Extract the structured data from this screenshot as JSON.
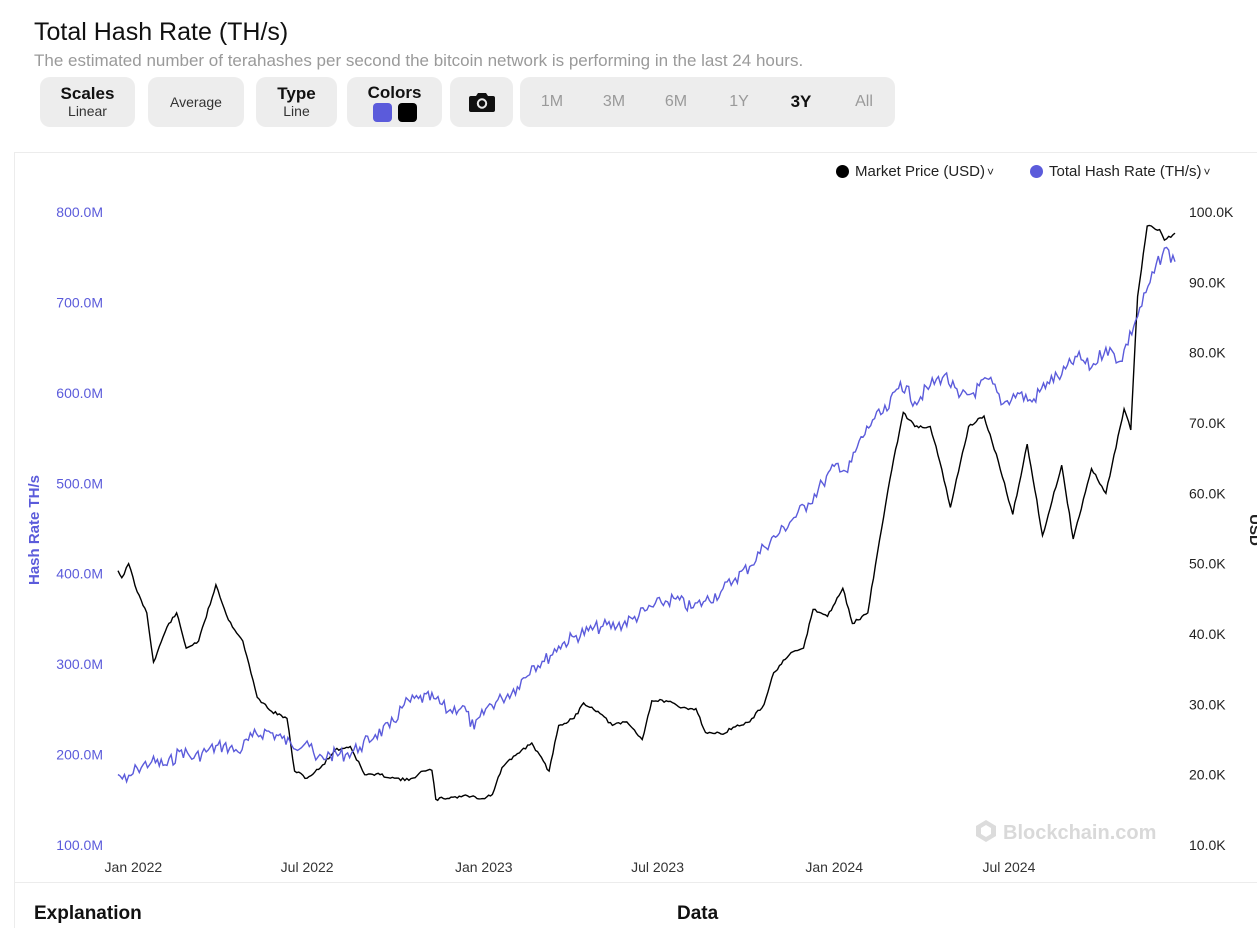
{
  "header": {
    "title": "Total Hash Rate (TH/s)",
    "subtitle": "The estimated number of terahashes per second the bitcoin network is performing in the last 24 hours."
  },
  "controls": {
    "scales_label": "Scales",
    "scales_value": "Linear",
    "average_label": "Average",
    "type_label": "Type",
    "type_value": "Line",
    "colors_label": "Colors",
    "color_1": "#5b5bdb",
    "color_2": "#000000",
    "camera_icon": "camera-icon",
    "ranges": [
      "1M",
      "3M",
      "6M",
      "1Y",
      "3Y",
      "All"
    ],
    "active_range": "3Y"
  },
  "legend": {
    "price_label": "Market Price (USD)",
    "hash_label": "Total Hash Rate (TH/s)"
  },
  "watermark": "Blockchain.com",
  "footer": {
    "explanation": "Explanation",
    "data": "Data"
  },
  "chart_data": {
    "type": "line",
    "x_ticks": [
      "Jan 2022",
      "Jul 2022",
      "Jan 2023",
      "Jul 2023",
      "Jan 2024",
      "Jul 2024"
    ],
    "y_left": {
      "label": "Hash Rate TH/s",
      "range": [
        100,
        800
      ],
      "ticks": [
        "100.0M",
        "200.0M",
        "300.0M",
        "400.0M",
        "500.0M",
        "600.0M",
        "700.0M",
        "800.0M"
      ],
      "color": "#5b5bdb"
    },
    "y_right": {
      "label": "USD",
      "range": [
        10,
        100
      ],
      "ticks": [
        "10.0K",
        "20.0K",
        "30.0K",
        "40.0K",
        "50.0K",
        "60.0K",
        "70.0K",
        "80.0K",
        "90.0K",
        "100.0K"
      ],
      "color": "#222222"
    },
    "x_domain": [
      "2021-12-16",
      "2024-12-21"
    ],
    "series": [
      {
        "name": "Total Hash Rate (TH/s)",
        "axis": "left",
        "color": "#5b5bdb",
        "unit": "M TH/s",
        "points": [
          [
            "2021-12-16",
            178
          ],
          [
            "2021-12-25",
            170
          ],
          [
            "2022-01-05",
            185
          ],
          [
            "2022-01-20",
            192
          ],
          [
            "2022-02-05",
            188
          ],
          [
            "2022-02-20",
            205
          ],
          [
            "2022-03-05",
            196
          ],
          [
            "2022-03-20",
            205
          ],
          [
            "2022-04-05",
            210
          ],
          [
            "2022-04-20",
            203
          ],
          [
            "2022-05-05",
            220
          ],
          [
            "2022-05-20",
            226
          ],
          [
            "2022-06-05",
            218
          ],
          [
            "2022-06-15",
            210
          ],
          [
            "2022-07-01",
            215
          ],
          [
            "2022-07-10",
            194
          ],
          [
            "2022-07-25",
            200
          ],
          [
            "2022-08-10",
            200
          ],
          [
            "2022-08-25",
            208
          ],
          [
            "2022-09-10",
            222
          ],
          [
            "2022-09-25",
            230
          ],
          [
            "2022-10-10",
            255
          ],
          [
            "2022-10-25",
            262
          ],
          [
            "2022-11-10",
            262
          ],
          [
            "2022-11-25",
            248
          ],
          [
            "2022-12-10",
            254
          ],
          [
            "2022-12-22",
            228
          ],
          [
            "2023-01-05",
            253
          ],
          [
            "2023-01-20",
            262
          ],
          [
            "2023-02-05",
            275
          ],
          [
            "2023-02-20",
            298
          ],
          [
            "2023-03-05",
            303
          ],
          [
            "2023-03-20",
            320
          ],
          [
            "2023-04-05",
            330
          ],
          [
            "2023-04-20",
            337
          ],
          [
            "2023-05-05",
            342
          ],
          [
            "2023-05-20",
            342
          ],
          [
            "2023-06-05",
            350
          ],
          [
            "2023-06-20",
            360
          ],
          [
            "2023-07-05",
            368
          ],
          [
            "2023-07-20",
            372
          ],
          [
            "2023-08-05",
            362
          ],
          [
            "2023-08-20",
            370
          ],
          [
            "2023-09-05",
            380
          ],
          [
            "2023-09-20",
            395
          ],
          [
            "2023-10-05",
            408
          ],
          [
            "2023-10-20",
            430
          ],
          [
            "2023-11-05",
            445
          ],
          [
            "2023-11-20",
            462
          ],
          [
            "2023-12-05",
            478
          ],
          [
            "2023-12-20",
            500
          ],
          [
            "2024-01-05",
            522
          ],
          [
            "2024-01-15",
            512
          ],
          [
            "2024-01-25",
            540
          ],
          [
            "2024-02-10",
            570
          ],
          [
            "2024-02-25",
            580
          ],
          [
            "2024-03-10",
            612
          ],
          [
            "2024-03-25",
            590
          ],
          [
            "2024-04-10",
            608
          ],
          [
            "2024-04-25",
            620
          ],
          [
            "2024-05-10",
            595
          ],
          [
            "2024-05-25",
            600
          ],
          [
            "2024-06-10",
            615
          ],
          [
            "2024-06-25",
            588
          ],
          [
            "2024-07-10",
            600
          ],
          [
            "2024-07-25",
            590
          ],
          [
            "2024-08-10",
            612
          ],
          [
            "2024-08-25",
            620
          ],
          [
            "2024-09-10",
            640
          ],
          [
            "2024-09-25",
            628
          ],
          [
            "2024-10-10",
            650
          ],
          [
            "2024-10-25",
            635
          ],
          [
            "2024-11-10",
            680
          ],
          [
            "2024-11-25",
            722
          ],
          [
            "2024-12-10",
            760
          ],
          [
            "2024-12-21",
            745
          ]
        ]
      },
      {
        "name": "Market Price (USD)",
        "axis": "right",
        "color": "#000000",
        "unit": "K USD",
        "points": [
          [
            "2021-12-16",
            49
          ],
          [
            "2021-12-20",
            48
          ],
          [
            "2021-12-27",
            50
          ],
          [
            "2022-01-05",
            46
          ],
          [
            "2022-01-15",
            43
          ],
          [
            "2022-01-22",
            36
          ],
          [
            "2022-02-05",
            41
          ],
          [
            "2022-02-15",
            43
          ],
          [
            "2022-02-25",
            38
          ],
          [
            "2022-03-10",
            39
          ],
          [
            "2022-03-28",
            47
          ],
          [
            "2022-04-10",
            42
          ],
          [
            "2022-04-25",
            39
          ],
          [
            "2022-05-10",
            31
          ],
          [
            "2022-05-25",
            29
          ],
          [
            "2022-06-10",
            28
          ],
          [
            "2022-06-18",
            20.5
          ],
          [
            "2022-07-01",
            19.5
          ],
          [
            "2022-07-15",
            21
          ],
          [
            "2022-07-30",
            23.5
          ],
          [
            "2022-08-15",
            24
          ],
          [
            "2022-08-30",
            20
          ],
          [
            "2022-09-15",
            20
          ],
          [
            "2022-09-30",
            19.5
          ],
          [
            "2022-10-15",
            19.2
          ],
          [
            "2022-10-30",
            20.5
          ],
          [
            "2022-11-08",
            20.6
          ],
          [
            "2022-11-12",
            16.5
          ],
          [
            "2022-11-30",
            16.8
          ],
          [
            "2022-12-15",
            17
          ],
          [
            "2022-12-31",
            16.6
          ],
          [
            "2023-01-10",
            17.2
          ],
          [
            "2023-01-20",
            21
          ],
          [
            "2023-02-05",
            23
          ],
          [
            "2023-02-20",
            24.5
          ],
          [
            "2023-03-10",
            20.5
          ],
          [
            "2023-03-20",
            27
          ],
          [
            "2023-04-05",
            28
          ],
          [
            "2023-04-15",
            30.2
          ],
          [
            "2023-04-30",
            29
          ],
          [
            "2023-05-15",
            27
          ],
          [
            "2023-05-30",
            27.5
          ],
          [
            "2023-06-15",
            25
          ],
          [
            "2023-06-25",
            30.5
          ],
          [
            "2023-07-10",
            30.5
          ],
          [
            "2023-07-25",
            29.5
          ],
          [
            "2023-08-10",
            29.4
          ],
          [
            "2023-08-20",
            26
          ],
          [
            "2023-09-05",
            25.8
          ],
          [
            "2023-09-20",
            26.8
          ],
          [
            "2023-10-05",
            27.5
          ],
          [
            "2023-10-20",
            30
          ],
          [
            "2023-10-30",
            34.5
          ],
          [
            "2023-11-15",
            37
          ],
          [
            "2023-11-30",
            38
          ],
          [
            "2023-12-10",
            43.5
          ],
          [
            "2023-12-25",
            42.5
          ],
          [
            "2024-01-10",
            46.5
          ],
          [
            "2024-01-20",
            41.5
          ],
          [
            "2024-02-05",
            43
          ],
          [
            "2024-02-15",
            51.5
          ],
          [
            "2024-02-28",
            62
          ],
          [
            "2024-03-13",
            71.5
          ],
          [
            "2024-03-25",
            69.5
          ],
          [
            "2024-04-10",
            69.5
          ],
          [
            "2024-04-20",
            64.5
          ],
          [
            "2024-05-01",
            58
          ],
          [
            "2024-05-20",
            69.5
          ],
          [
            "2024-06-05",
            71
          ],
          [
            "2024-06-20",
            64.5
          ],
          [
            "2024-07-05",
            57
          ],
          [
            "2024-07-20",
            67
          ],
          [
            "2024-08-05",
            54
          ],
          [
            "2024-08-25",
            64
          ],
          [
            "2024-09-06",
            53.5
          ],
          [
            "2024-09-25",
            63.5
          ],
          [
            "2024-10-10",
            60
          ],
          [
            "2024-10-29",
            72
          ],
          [
            "2024-11-05",
            69
          ],
          [
            "2024-11-12",
            88
          ],
          [
            "2024-11-22",
            98
          ],
          [
            "2024-12-05",
            97.5
          ],
          [
            "2024-12-10",
            96
          ],
          [
            "2024-12-21",
            97
          ]
        ]
      }
    ],
    "grid": false,
    "legend_position": "top-right"
  }
}
